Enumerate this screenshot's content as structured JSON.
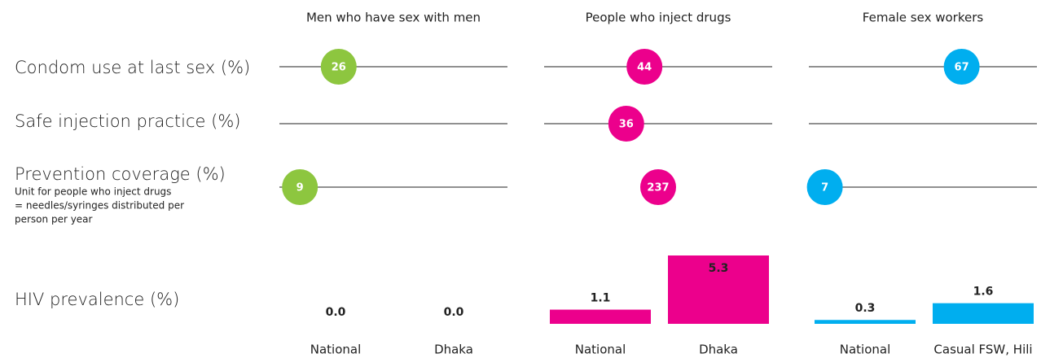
{
  "row_labels": [
    "Condom use at last sex (%)",
    "Safe injection practice (%)",
    "Prevention coverage (%)",
    "HIV prevalence (%)"
  ],
  "row_note": [
    "Unit for people who inject drugs",
    "= needles/syringes distributed per",
    "person per year"
  ],
  "dot_scale": [
    0,
    100
  ],
  "groups": [
    {
      "name": "Men who have sex with men",
      "color": "#8dc63f",
      "dots": [
        26,
        null,
        9
      ],
      "bars": {
        "categories": [
          "National",
          "Dhaka"
        ],
        "values": [
          0,
          0
        ],
        "value_labels": [
          "0.0",
          "0.0"
        ]
      }
    },
    {
      "name": "People who inject drugs",
      "color": "#ec008c",
      "dots": [
        44,
        36,
        237
      ],
      "bars": {
        "categories": [
          "National",
          "Dhaka"
        ],
        "values": [
          1.1,
          5.3
        ]
      }
    },
    {
      "name": "Female sex workers",
      "color": "#00aeef",
      "dots": [
        67,
        null,
        7
      ],
      "bars": {
        "categories": [
          "National",
          "Casual FSW, Hili"
        ],
        "values": [
          0.3,
          1.6
        ]
      }
    }
  ]
}
